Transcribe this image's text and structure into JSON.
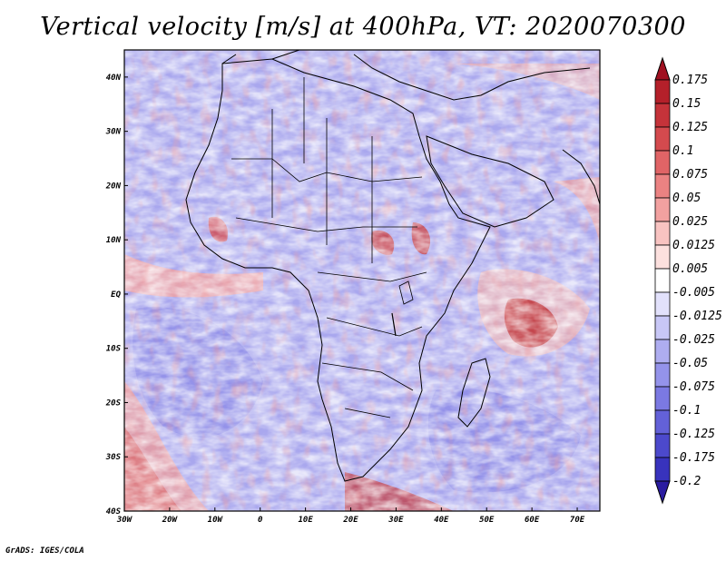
{
  "title": "Vertical velocity [m/s] at 400hPa, VT: 2020070300",
  "credit": "GrADS: IGES/COLA",
  "map": {
    "lon_range": [
      -30,
      75
    ],
    "lat_range": [
      -40,
      45
    ],
    "lat_ticks": [
      {
        "value": 40,
        "label": "40N"
      },
      {
        "value": 30,
        "label": "30N"
      },
      {
        "value": 20,
        "label": "20N"
      },
      {
        "value": 10,
        "label": "10N"
      },
      {
        "value": 0,
        "label": "EQ"
      },
      {
        "value": -10,
        "label": "10S"
      },
      {
        "value": -20,
        "label": "20S"
      },
      {
        "value": -30,
        "label": "30S"
      },
      {
        "value": -40,
        "label": "40S"
      }
    ],
    "lon_ticks": [
      {
        "value": -30,
        "label": "30W"
      },
      {
        "value": -20,
        "label": "20W"
      },
      {
        "value": -10,
        "label": "10W"
      },
      {
        "value": 0,
        "label": "0"
      },
      {
        "value": 10,
        "label": "10E"
      },
      {
        "value": 20,
        "label": "20E"
      },
      {
        "value": 30,
        "label": "30E"
      },
      {
        "value": 40,
        "label": "40E"
      },
      {
        "value": 50,
        "label": "50E"
      },
      {
        "value": 60,
        "label": "60E"
      },
      {
        "value": 70,
        "label": "70E"
      }
    ]
  },
  "colorbar": {
    "levels": [
      {
        "label": "0.175",
        "color": "#b4202a"
      },
      {
        "label": "0.15",
        "color": "#c5333a"
      },
      {
        "label": "0.125",
        "color": "#d44a4e"
      },
      {
        "label": "0.1",
        "color": "#e06466"
      },
      {
        "label": "0.075",
        "color": "#eb8282"
      },
      {
        "label": "0.05",
        "color": "#f2a1a0"
      },
      {
        "label": "0.025",
        "color": "#f8c3c1"
      },
      {
        "label": "0.0125",
        "color": "#fce0de"
      },
      {
        "label": "0.005",
        "color": "#ffffff"
      },
      {
        "label": "-0.005",
        "color": "#e2e1fb"
      },
      {
        "label": "-0.0125",
        "color": "#c8c7f6"
      },
      {
        "label": "-0.025",
        "color": "#aeadf0"
      },
      {
        "label": "-0.05",
        "color": "#9493ea"
      },
      {
        "label": "-0.075",
        "color": "#7b79e2"
      },
      {
        "label": "-0.1",
        "color": "#6361d8"
      },
      {
        "label": "-0.125",
        "color": "#4c49cc"
      },
      {
        "label": "-0.175",
        "color": "#3833bd"
      },
      {
        "label": "-0.2",
        "color": "#2a22ad"
      }
    ],
    "top_color": "#a01020",
    "bottom_color": "#2a1ca0"
  }
}
